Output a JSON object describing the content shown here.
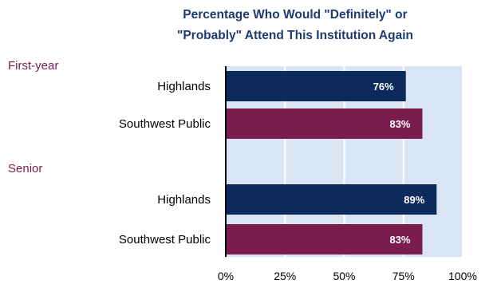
{
  "chart_data": {
    "type": "bar",
    "orientation": "horizontal",
    "title_lines": [
      "Percentage Who Would \"Definitely\" or",
      "\"Probably\" Attend This Institution Again"
    ],
    "xlim": [
      0,
      100
    ],
    "x_ticks": [
      "0%",
      "25%",
      "50%",
      "75%",
      "100%"
    ],
    "grid": true,
    "groups": [
      {
        "label": "First-year",
        "bars": [
          {
            "category": "Highlands",
            "value": 76,
            "label": "76%"
          },
          {
            "category": "Southwest Public",
            "value": 83,
            "label": "83%"
          }
        ]
      },
      {
        "label": "Senior",
        "bars": [
          {
            "category": "Highlands",
            "value": 89,
            "label": "89%"
          },
          {
            "category": "Southwest Public",
            "value": 83,
            "label": "83%"
          }
        ]
      }
    ],
    "colors": {
      "Highlands": "#0d2a5c",
      "Southwest Public": "#7a1c4d",
      "plot_background": "#d9e4f5",
      "gridline": "#ffffff",
      "axis": "#000000",
      "title": "#1f3a70",
      "group_label": "#7a1c4d"
    }
  }
}
